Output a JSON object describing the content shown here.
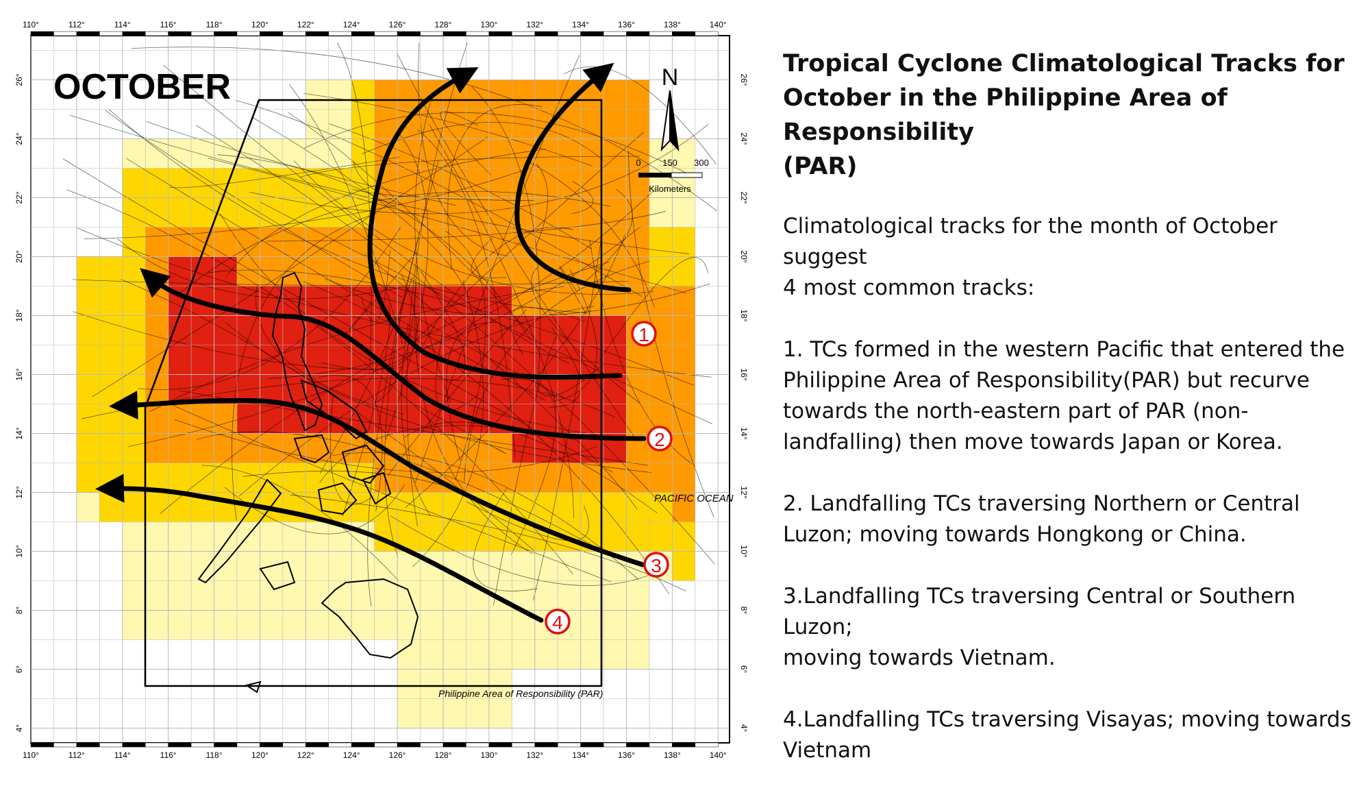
{
  "map": {
    "title": "OCTOBER",
    "north_label": "N",
    "scale": {
      "ticks": [
        "0",
        "150",
        "300"
      ],
      "unit": "Kilometers"
    },
    "ocean_label": "PACIFIC OCEAN",
    "par_label": "Philippine Area of Responsibility (PAR)",
    "lon_labels": [
      "110°",
      "112°",
      "114°",
      "116°",
      "118°",
      "120°",
      "122°",
      "124°",
      "126°",
      "128°",
      "130°",
      "132°",
      "134°",
      "136°",
      "138°",
      "140°"
    ],
    "lat_labels": [
      "4°",
      "6°",
      "8°",
      "10°",
      "12°",
      "14°",
      "16°",
      "18°",
      "20°",
      "22°",
      "24°",
      "26°"
    ],
    "track_markers": [
      "1",
      "2",
      "3",
      "4"
    ],
    "colors": {
      "density_low": "#fff8b0",
      "density_mid": "#ffd700",
      "density_high": "#ff9a00",
      "density_max": "#e02010",
      "marker": "#e01010",
      "track": "#000000"
    }
  },
  "panel": {
    "title": "Tropical Cyclone Climatological  Tracks for\nOctober in the Philippine Area of Responsibility\n(PAR)",
    "intro": "Climatological tracks for the month of October suggest\n4 most common tracks:",
    "tracks": [
      "1. TCs formed in the western Pacific that entered the\nPhilippine Area of Responsibility(PAR) but recurve\ntowards the north-eastern part of PAR (non-\nlandfalling) then move towards Japan or Korea.",
      "2. Landfalling TCs traversing Northern or Central\nLuzon; moving towards Hongkong or China.",
      "3.Landfalling TCs traversing Central or Southern Luzon;\nmoving  towards Vietnam.",
      "4.Landfalling TCs traversing Visayas; moving towards\nVietnam"
    ]
  }
}
